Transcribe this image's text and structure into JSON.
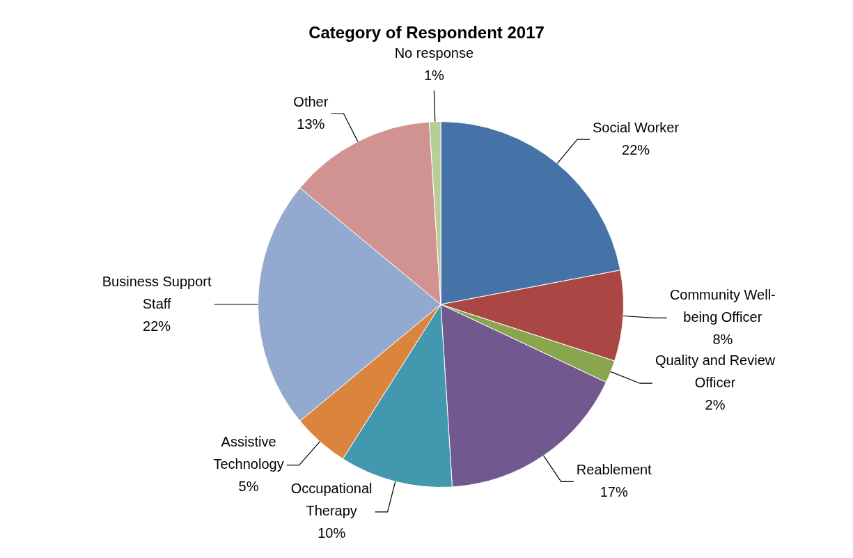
{
  "chart_data": {
    "type": "pie",
    "title": "Category of Respondent 2017",
    "categories": [
      "Social Worker",
      "Community Well-being Officer",
      "Quality and Review Officer",
      "Reablement",
      "Occupational Therapy",
      "Assistive Technology",
      "Business Support Staff",
      "Other",
      "No response"
    ],
    "values": [
      22,
      8,
      2,
      17,
      10,
      5,
      22,
      13,
      1
    ],
    "value_labels": [
      "22%",
      "8%",
      "2%",
      "17%",
      "10%",
      "5%",
      "22%",
      "13%",
      "1%"
    ],
    "colors": [
      "#4572a7",
      "#aa4643",
      "#89a54e",
      "#71588f",
      "#4198af",
      "#db843d",
      "#93a9cf",
      "#d19392",
      "#b9cd96"
    ],
    "legend": false
  }
}
